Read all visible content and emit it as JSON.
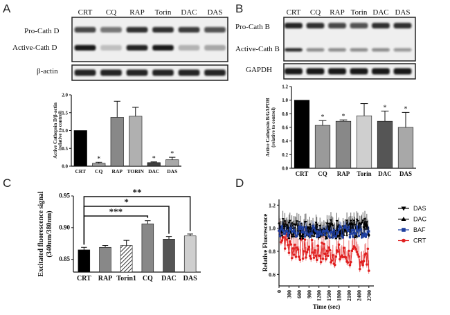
{
  "panels": {
    "a": "A",
    "b": "B",
    "c": "C",
    "d": "D"
  },
  "blot_a": {
    "lanes": [
      "CRT",
      "CQ",
      "RAP",
      "Torin",
      "DAC",
      "DAS"
    ],
    "rows": [
      "Pro-Cath D",
      "Active-Cath D",
      "β-actin"
    ]
  },
  "blot_b": {
    "lanes": [
      "CRT",
      "CQ",
      "RAP",
      "Torin",
      "DAC",
      "DAS"
    ],
    "rows": [
      "Pro-Cath B",
      "Active-Cath B",
      "GAPDH"
    ]
  },
  "chart_data": [
    {
      "id": "A",
      "type": "bar",
      "ylabel_line1": "Active Cathepsin D/β-actin",
      "ylabel_line2": "(relative to control)",
      "categories": [
        "CRT",
        "CQ",
        "RAP",
        "TORIN",
        "DAC",
        "DAS"
      ],
      "values": [
        1.0,
        0.08,
        1.37,
        1.4,
        0.1,
        0.18
      ],
      "errors": [
        0,
        0.03,
        0.45,
        0.25,
        0.02,
        0.07
      ],
      "colors": [
        "#000000",
        "#9a9a9a",
        "#888888",
        "#b0b0b0",
        "#3f3f3f",
        "#a8a8a8"
      ],
      "significance": [
        "",
        "*",
        "",
        "",
        "*",
        "*"
      ],
      "ylim": [
        0,
        2.0
      ],
      "yticks": [
        "0.0",
        "0.5",
        "1.0",
        "1.5",
        "2.0"
      ]
    },
    {
      "id": "B",
      "type": "bar",
      "ylabel_line1": "Active Cathepsin B/GAPDH",
      "ylabel_line2": "(relative to control)",
      "categories": [
        "CRT",
        "CQ",
        "RAP",
        "Torin",
        "DAC",
        "DAS"
      ],
      "values": [
        1.0,
        0.63,
        0.69,
        0.77,
        0.69,
        0.6
      ],
      "errors": [
        0,
        0.07,
        0.02,
        0.18,
        0.15,
        0.22
      ],
      "colors": [
        "#000000",
        "#9a9a9a",
        "#888888",
        "#cfcfcf",
        "#555555",
        "#a8a8a8"
      ],
      "significance": [
        "",
        "*",
        "*",
        "",
        "*",
        "*"
      ],
      "ylim": [
        0,
        1.2
      ],
      "yticks": [
        "0.0",
        "0.2",
        "0.4",
        "0.6",
        "0.8",
        "1.0",
        "1.2"
      ]
    },
    {
      "id": "C",
      "type": "bar",
      "ylabel_line1": "Excitated fluorescence signal",
      "ylabel_line2": "(340nm/380nm)",
      "categories": [
        "CRT",
        "RAP",
        "Torin1",
        "CQ",
        "DAC",
        "DAS"
      ],
      "values": [
        0.865,
        0.869,
        0.872,
        0.906,
        0.882,
        0.887
      ],
      "errors": [
        0.004,
        0.003,
        0.008,
        0.005,
        0.004,
        0.003
      ],
      "colors": [
        "#000000",
        "#888888",
        "hatch",
        "#888888",
        "#555555",
        "#cfcfcf"
      ],
      "brackets": [
        {
          "from": 0,
          "to": 5,
          "label": "**"
        },
        {
          "from": 0,
          "to": 4,
          "label": "*"
        },
        {
          "from": 0,
          "to": 3,
          "label": "***"
        }
      ],
      "ylim": [
        0.83,
        0.95
      ],
      "yticks": [
        "0.85",
        "0.90",
        "0.95"
      ]
    },
    {
      "id": "D",
      "type": "line",
      "ylabel": "Relative Fluorescence",
      "xlabel": "Time (sec)",
      "xlim": [
        0,
        2850
      ],
      "ylim": [
        0.5,
        1.25
      ],
      "xticks": [
        "0",
        "300",
        "600",
        "900",
        "1200",
        "1500",
        "1800",
        "2100",
        "2400",
        "2700"
      ],
      "yticks": [
        "0.6",
        "0.8",
        "1.0",
        "1.2"
      ],
      "series": [
        {
          "name": "DAS",
          "color": "#000000",
          "marker": "tri-down",
          "mean": 1.0,
          "spread": 0.08
        },
        {
          "name": "DAC",
          "color": "#000000",
          "marker": "tri-up",
          "mean": 0.98,
          "spread": 0.07
        },
        {
          "name": "BAF",
          "color": "#1f3f9f",
          "marker": "square",
          "mean": 0.97,
          "spread": 0.05
        },
        {
          "name": "CRT",
          "color": "#e02020",
          "marker": "circle",
          "mean": 0.78,
          "spread": 0.1
        }
      ]
    }
  ]
}
